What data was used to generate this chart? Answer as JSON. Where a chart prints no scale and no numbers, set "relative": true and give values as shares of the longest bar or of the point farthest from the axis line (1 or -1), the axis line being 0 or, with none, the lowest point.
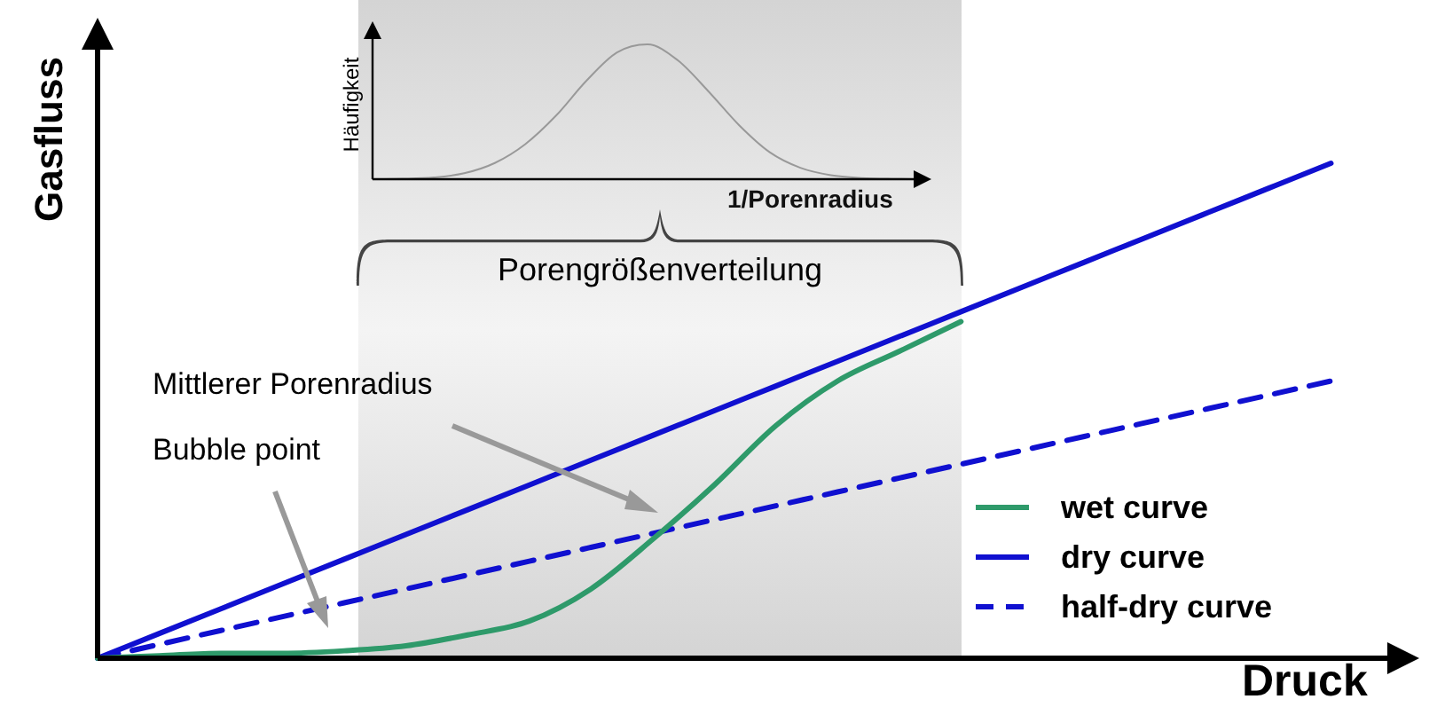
{
  "chart_data": [
    {
      "type": "line",
      "xlabel": "Druck",
      "ylabel": "Gasfluss",
      "relative": true,
      "marker": "none",
      "legend": "bottom right",
      "categories": [
        null,
        null,
        null,
        null,
        null,
        null,
        null,
        null,
        null,
        null,
        null,
        null,
        null,
        null,
        null,
        null,
        null,
        null,
        null,
        null,
        null,
        null
      ],
      "series": [
        {
          "name": "wet curve",
          "color": "#2e9a6a",
          "line_style": "solid",
          "values": [
            0,
            0.005,
            0.01,
            0.01,
            0.015,
            0.025,
            0.047,
            0.075,
            0.14,
            0.24,
            0.35,
            0.47,
            0.56,
            0.62,
            0.68,
            null,
            null,
            null,
            null,
            null,
            null,
            null
          ]
        },
        {
          "name": "dry curve",
          "color": "#1010d0",
          "line_style": "solid",
          "values": [
            0,
            0.05,
            0.1,
            0.15,
            0.2,
            0.25,
            0.3,
            0.35,
            0.4,
            0.45,
            0.5,
            0.55,
            0.6,
            0.65,
            0.7,
            0.75,
            0.8,
            0.85,
            0.9,
            0.95,
            1,
            null
          ]
        },
        {
          "name": "half-dry curve",
          "color": "#1010d0",
          "line_style": "dashed",
          "values": [
            0,
            0.028,
            0.056,
            0.084,
            0.112,
            0.14,
            0.168,
            0.196,
            0.224,
            0.252,
            0.28,
            0.308,
            0.336,
            0.364,
            0.392,
            0.42,
            0.448,
            0.476,
            0.504,
            0.532,
            0.56,
            null
          ]
        }
      ],
      "annotations": [
        "Porengrößenverteilung",
        "Mittlerer Porenradius",
        "Bubble point"
      ]
    },
    {
      "type": "line",
      "xlabel": "1/Porenradius",
      "ylabel": "Häufigkeit",
      "relative": true,
      "marker": "none",
      "color": "#999999",
      "categories": [
        null,
        null,
        null,
        null,
        null,
        null,
        null,
        null,
        null,
        null,
        null,
        null,
        null,
        null,
        null,
        null,
        null,
        null,
        null
      ],
      "values": [
        0,
        0.003,
        0.013,
        0.044,
        0.12,
        0.26,
        0.47,
        0.73,
        0.94,
        1,
        0.88,
        0.65,
        0.4,
        0.2,
        0.085,
        0.03,
        0.009,
        0.002,
        0
      ]
    }
  ]
}
